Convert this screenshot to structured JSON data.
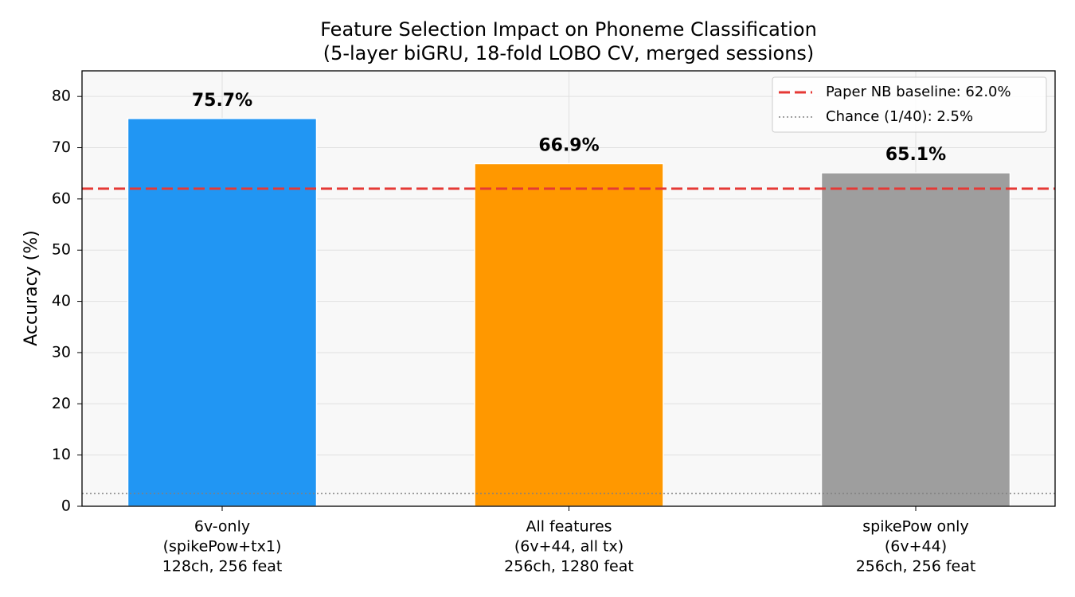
{
  "chart_data": {
    "type": "bar",
    "title": "Feature Selection Impact on Phoneme Classification",
    "subtitle": "(5-layer biGRU, 18-fold LOBO CV, merged sessions)",
    "y_label": "Accuracy (%)",
    "categories": [
      [
        "6v-only",
        "(spikePow+tx1)",
        "128ch, 256 feat"
      ],
      [
        "All features",
        "(6v+44, all tx)",
        "256ch, 1280 feat"
      ],
      [
        "spikePow only",
        "(6v+44)",
        "256ch, 256 feat"
      ]
    ],
    "values": [
      75.7,
      66.9,
      65.1
    ],
    "value_labels": [
      "75.7%",
      "66.9%",
      "65.1%"
    ],
    "colors": [
      "#2196f3",
      "#ff9800",
      "#9e9e9e"
    ],
    "ylim": [
      0,
      85
    ],
    "yticks": [
      0,
      10,
      20,
      30,
      40,
      50,
      60,
      70,
      80
    ],
    "grid": true,
    "reference_lines": [
      {
        "label": "Paper NB baseline: 62.0%",
        "value": 62.0,
        "color": "#e53935",
        "style": "dashed"
      },
      {
        "label": "Chance (1/40): 2.5%",
        "value": 2.5,
        "color": "#808080",
        "style": "dotted"
      }
    ],
    "legend": "upper right"
  }
}
